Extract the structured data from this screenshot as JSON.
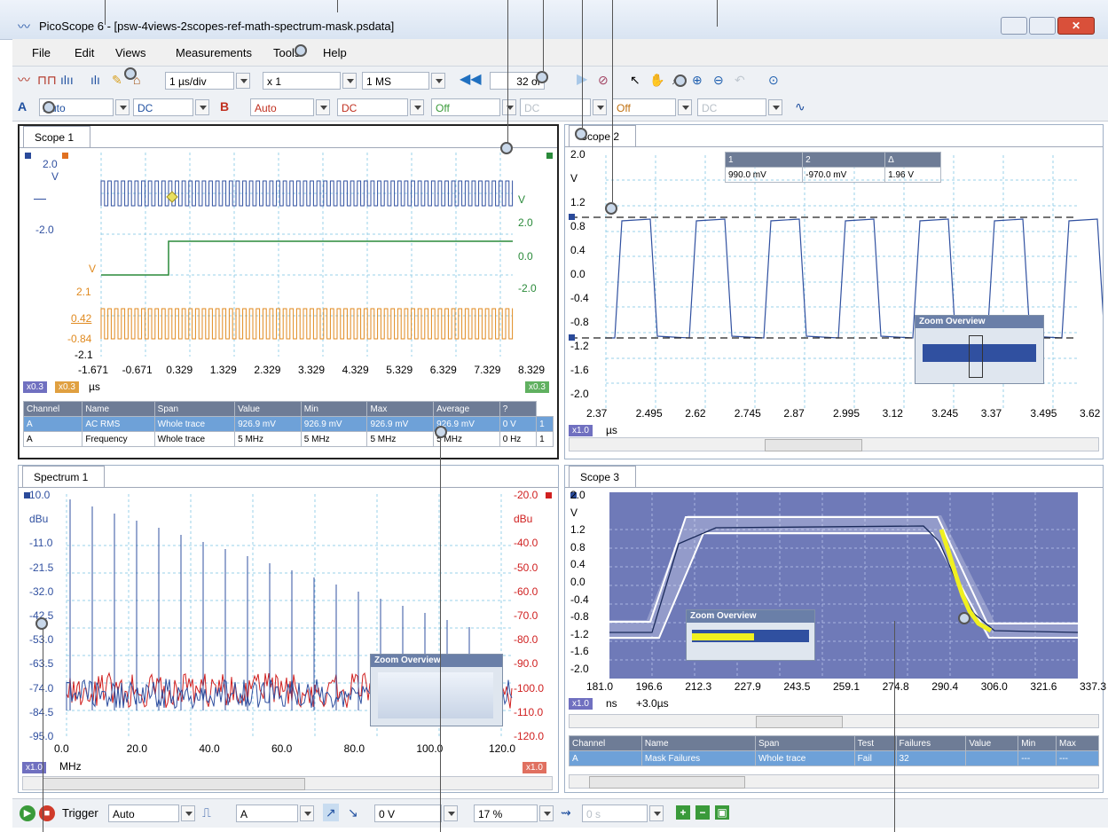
{
  "window": {
    "title": "PicoScope 6 - [psw-4views-2scopes-ref-math-spectrum-mask.psdata]"
  },
  "menu": [
    "File",
    "Edit",
    "Views",
    "Measurements",
    "Tools",
    "Help"
  ],
  "toolbar": {
    "timebase": "1 µs/div",
    "zoom": "x 1",
    "samples": "1 MS",
    "buffer": "32 of"
  },
  "channels": {
    "a_label": "A",
    "a_range": "Auto",
    "a_coupling": "DC",
    "b_label": "B",
    "b_range": "Auto",
    "b_coupling": "DC",
    "c_range": "Off",
    "c_coupling": "DC",
    "d_range": "Off",
    "d_coupling": "DC"
  },
  "scope1": {
    "tab": "Scope 1",
    "y_blue": [
      "2.0",
      "V",
      "-2.0"
    ],
    "y_orange": [
      "V",
      "2.1",
      "0.42",
      "-0.84",
      "-2.1"
    ],
    "y_green": [
      "V",
      "2.0",
      "0.0",
      "-2.0"
    ],
    "x_ticks": [
      "-1.671",
      "-0.671",
      "0.329",
      "1.329",
      "2.329",
      "3.329",
      "4.329",
      "5.329",
      "6.329",
      "7.329",
      "8.329"
    ],
    "x_unit": "µs",
    "zoom_badges": [
      "x0.3",
      "x0.3",
      "x0.3"
    ],
    "measurements": {
      "header": [
        "Channel",
        "Name",
        "Span",
        "Value",
        "Min",
        "Max",
        "Average",
        "?"
      ],
      "rows": [
        [
          "A",
          "AC RMS",
          "Whole trace",
          "926.9 mV",
          "926.9 mV",
          "926.9 mV",
          "926.9 mV",
          "0 V",
          "1"
        ],
        [
          "A",
          "Frequency",
          "Whole trace",
          "5 MHz",
          "5 MHz",
          "5 MHz",
          "5 MHz",
          "0 Hz",
          "1"
        ]
      ]
    }
  },
  "scope2": {
    "tab": "Scope 2",
    "y_ticks": [
      "2.0",
      "V",
      "1.2",
      "0.8",
      "0.4",
      "0.0",
      "-0.4",
      "-0.8",
      "-1.2",
      "-1.6",
      "-2.0"
    ],
    "x_ticks": [
      "2.37",
      "2.495",
      "2.62",
      "2.745",
      "2.87",
      "2.995",
      "3.12",
      "3.245",
      "3.37",
      "3.495",
      "3.62"
    ],
    "x_unit": "µs",
    "zoom_badge": "x1.0",
    "rulers": {
      "h1": "1",
      "h2": "2",
      "h3": "Δ",
      "v1": "990.0 mV",
      "v2": "-970.0 mV",
      "v3": "1.96 V"
    },
    "zoom_overview": "Zoom Overview"
  },
  "spectrum1": {
    "tab": "Spectrum 1",
    "y_left": [
      "10.0",
      "dBu",
      "-11.0",
      "-21.5",
      "-32.0",
      "-42.5",
      "-53.0",
      "-63.5",
      "-74.0",
      "-84.5",
      "-95.0"
    ],
    "y_right": [
      "-20.0",
      "dBu",
      "-40.0",
      "-50.0",
      "-60.0",
      "-70.0",
      "-80.0",
      "-90.0",
      "-100.0",
      "-110.0",
      "-120.0"
    ],
    "x_ticks": [
      "0.0",
      "20.0",
      "40.0",
      "60.0",
      "80.0",
      "100.0",
      "120.0"
    ],
    "x_unit": "MHz",
    "zoom_badges": [
      "x1.0",
      "x1.0"
    ],
    "zoom_overview": "Zoom Overview"
  },
  "scope3": {
    "tab": "Scope 3",
    "y_ticks": [
      "2.0",
      "V",
      "1.2",
      "0.8",
      "0.4",
      "0.0",
      "-0.4",
      "-0.8",
      "-1.2",
      "-1.6",
      "-2.0"
    ],
    "x_ticks": [
      "181.0",
      "196.6",
      "212.3",
      "227.9",
      "243.5",
      "259.1",
      "274.8",
      "290.4",
      "306.0",
      "321.6",
      "337.3"
    ],
    "x_unit": "ns",
    "x_offset": "+3.0µs",
    "zoom_badge": "x1.0",
    "zoom_overview": "Zoom Overview",
    "measurements": {
      "header": [
        "Channel",
        "Name",
        "Span",
        "Test",
        "Failures",
        "Value",
        "Min",
        "Max"
      ],
      "rows": [
        [
          "A",
          "Mask Failures",
          "Whole trace",
          "Fail",
          "32",
          "",
          "---",
          "---"
        ]
      ]
    }
  },
  "trigger": {
    "label": "Trigger",
    "mode": "Auto",
    "source": "A",
    "level": "0 V",
    "pretrigger": "17 %",
    "delay": "0 s"
  }
}
